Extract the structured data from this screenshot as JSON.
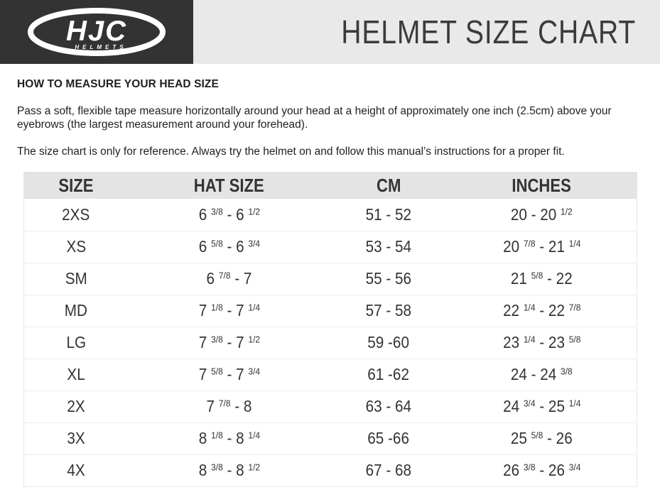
{
  "header": {
    "logo": {
      "brand": "HJC",
      "sub": "HELMETS"
    },
    "title": "HELMET SIZE CHART"
  },
  "intro": {
    "heading": "HOW TO MEASURE YOUR HEAD SIZE",
    "paragraph1": "Pass a soft, flexible tape measure horizontally around your head at a height of approximately one inch (2.5cm) above your eyebrows (the largest measurement around your forehead).",
    "paragraph2": "The size chart is only for reference. Always try the helmet on and follow this manual’s instructions for a proper fit."
  },
  "table": {
    "columns": [
      "SIZE",
      "HAT SIZE",
      "CM",
      "INCHES"
    ],
    "column_keys": [
      "size",
      "hat-size",
      "cm",
      "inches"
    ],
    "rows": [
      [
        "2XS",
        "6 3/8 - 6 1/2",
        "51 - 52",
        "20 - 20 1/2"
      ],
      [
        "XS",
        "6 5/8 - 6 3/4",
        "53 - 54",
        "20 7/8 - 21 1/4"
      ],
      [
        "SM",
        "6 7/8 - 7",
        "55 - 56",
        "21 5/8 - 22"
      ],
      [
        "MD",
        "7 1/8 - 7 1/4",
        "57 - 58",
        "22 1/4 - 22 7/8"
      ],
      [
        "LG",
        "7 3/8 - 7 1/2",
        "59 -60",
        "23 1/4 - 23 5/8"
      ],
      [
        "XL",
        "7 5/8 - 7 3/4",
        "61 -62",
        "24 - 24 3/8"
      ],
      [
        "2X",
        "7 7/8 - 8",
        "63 - 64",
        "24 3/4 - 25 1/4"
      ],
      [
        "3X",
        "8 1/8 - 8 1/4",
        "65 -66",
        "25 5/8 - 26"
      ],
      [
        "4X",
        "8 3/8 - 8 1/2",
        "67 - 68",
        "26 3/8 - 26 3/4"
      ]
    ]
  },
  "colors": {
    "header_dark": "#333333",
    "header_light": "#e9e9e9",
    "table_header_bg": "#e4e4e4",
    "text_dark": "#333333"
  }
}
